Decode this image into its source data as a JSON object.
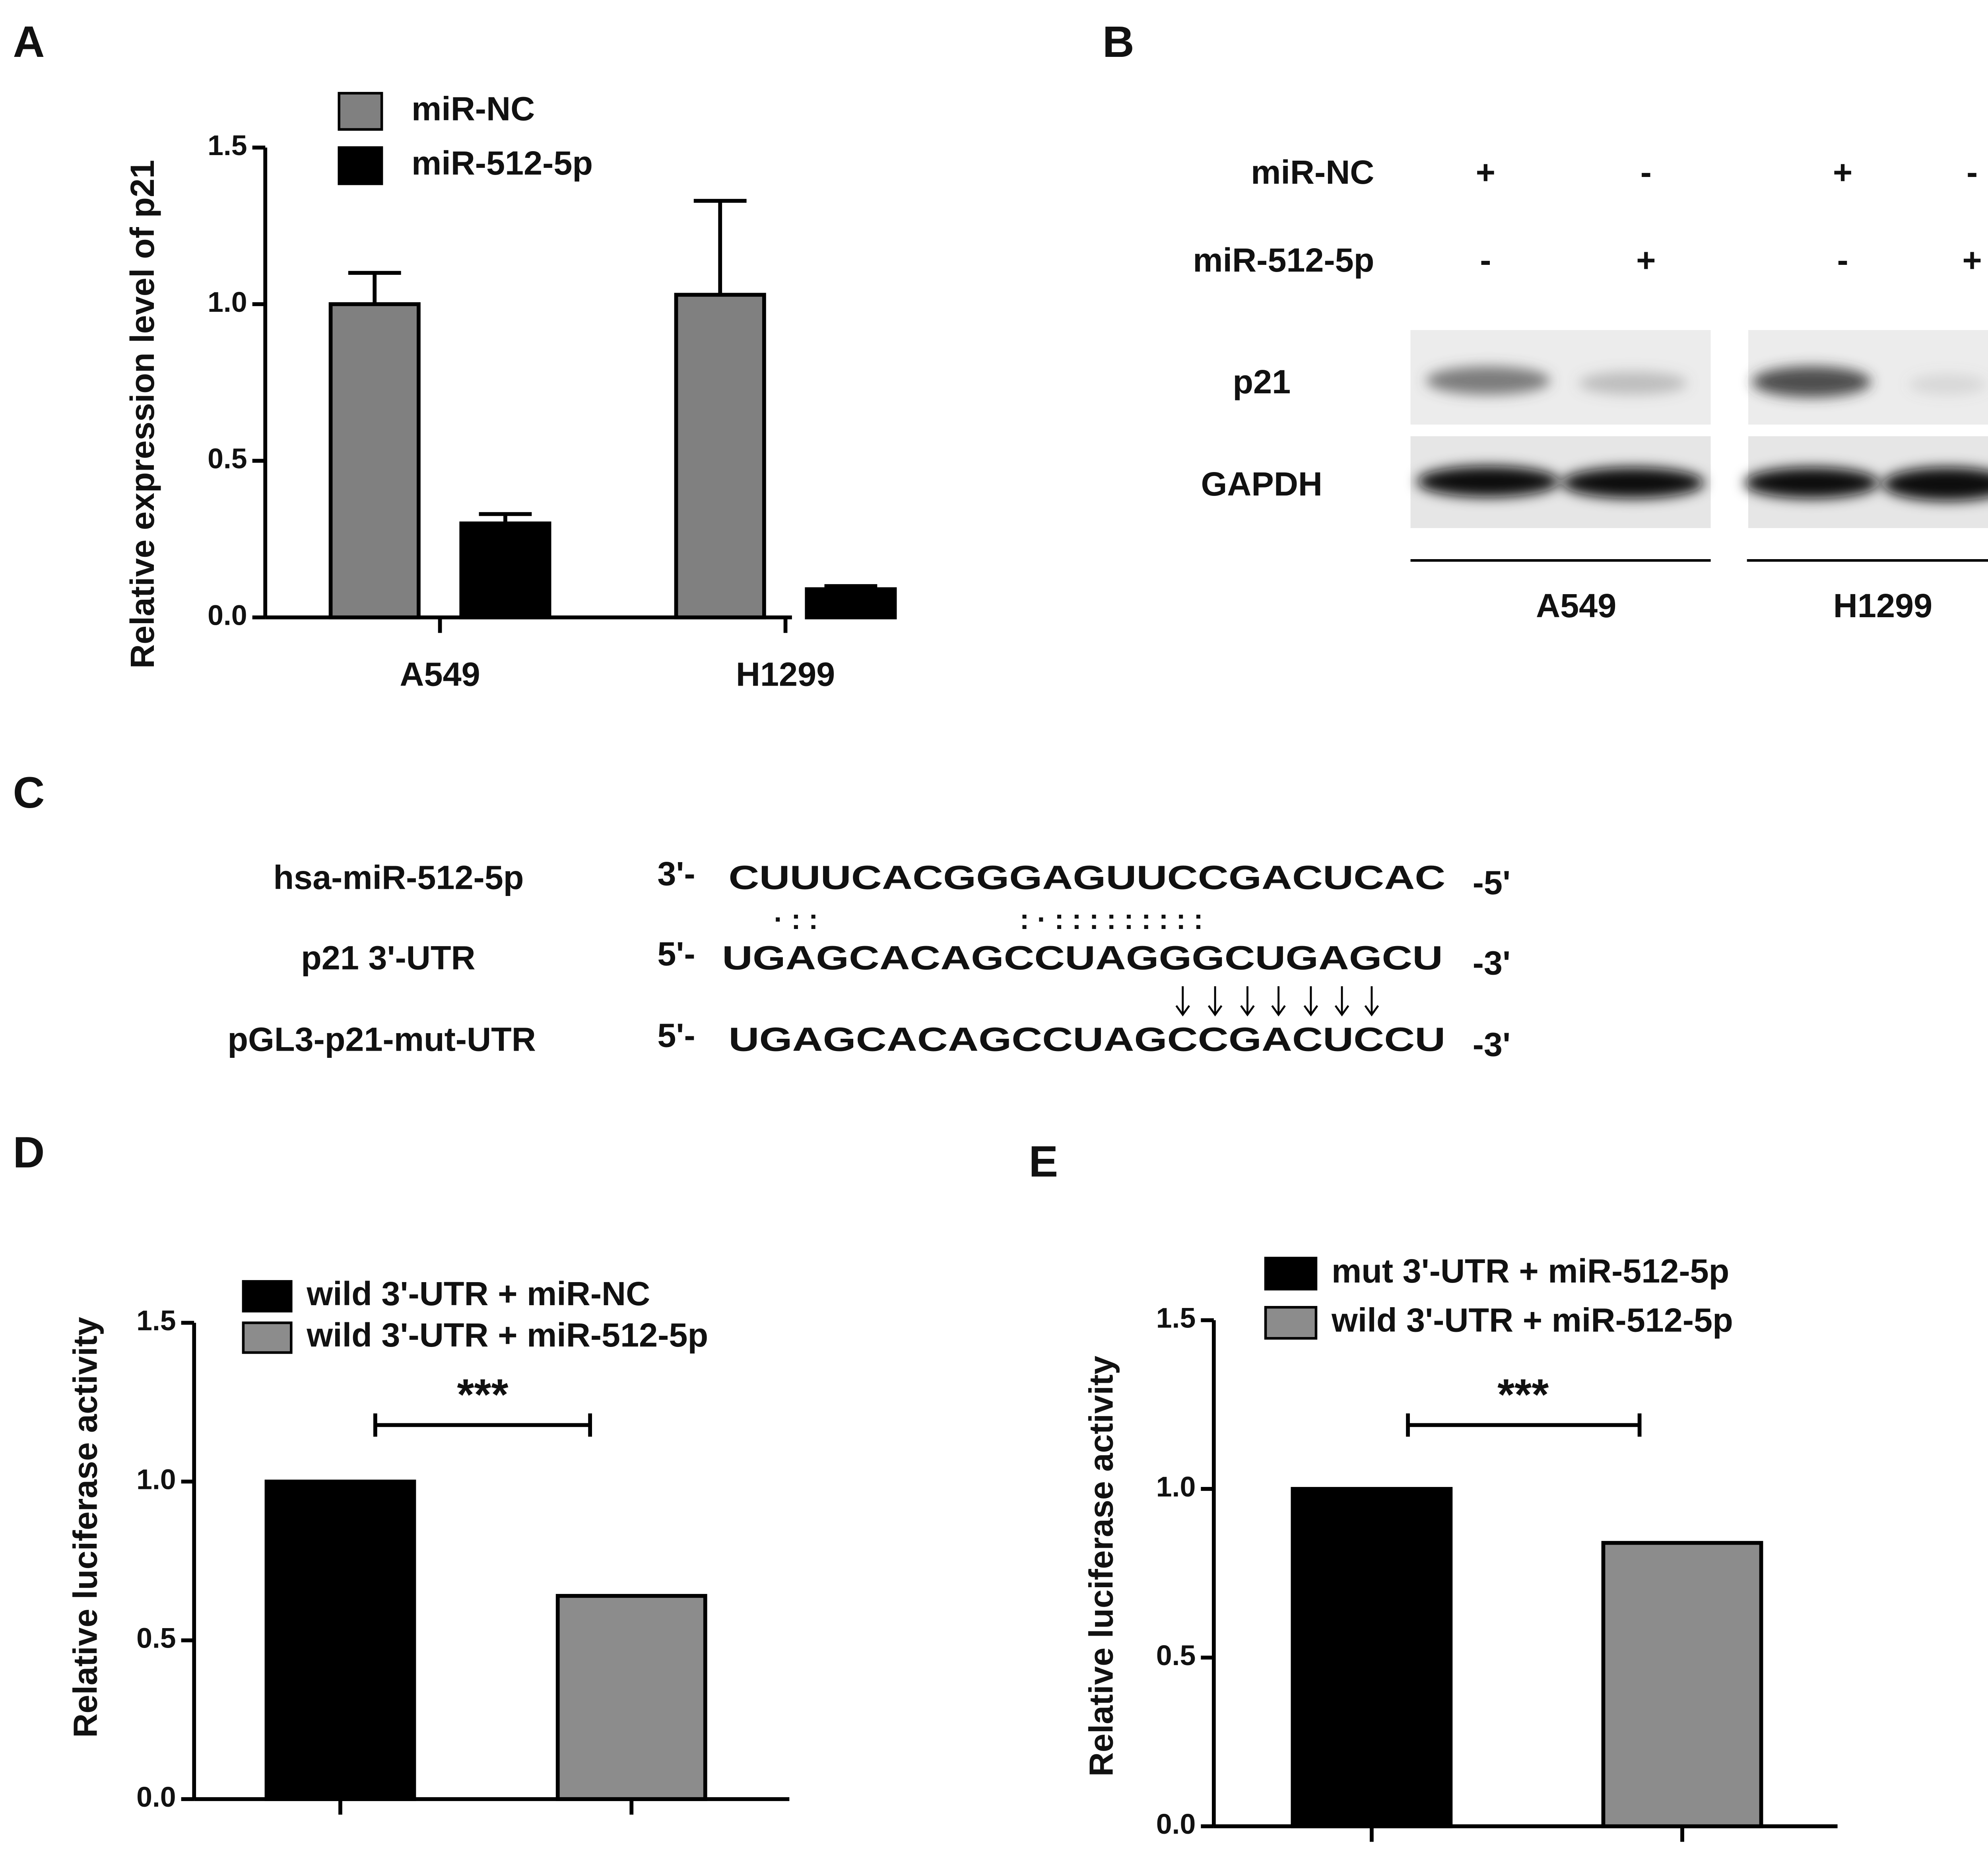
{
  "panel_labels": [
    "A",
    "B",
    "C",
    "D",
    "E"
  ],
  "chart_data": [
    {
      "type": "bar",
      "ylabel": "Relative expression level of p21",
      "categories": [
        "A549",
        "H1299"
      ],
      "series": [
        {
          "name": "miR-NC",
          "color": "#808080",
          "values": [
            1.0,
            1.03
          ],
          "errors": [
            0.1,
            0.3
          ]
        },
        {
          "name": "miR-512-5p",
          "color": "#000000",
          "values": [
            0.3,
            0.09
          ],
          "errors": [
            0.03,
            0.01
          ]
        }
      ],
      "ylim": [
        0,
        1.5
      ],
      "yticks": [
        {
          "value": 0,
          "label": "0.0"
        },
        0.5,
        {
          "value": 1,
          "label": "1.0"
        },
        1.5
      ]
    },
    {
      "type": "bar",
      "ylabel": "Relative  luciferase  activity",
      "categories": [
        null,
        null
      ],
      "series": [
        {
          "name": "wild 3'-UTR + miR-NC",
          "color": "#000000",
          "values": [
            1.0,
            null
          ]
        },
        {
          "name": "wild 3'-UTR + miR-512-5p",
          "color": "#8c8c8c",
          "values": [
            null,
            0.64
          ]
        }
      ],
      "annotation": "***",
      "ylim": [
        0,
        1.5
      ],
      "yticks": [
        {
          "value": 0,
          "label": "0.0"
        },
        0.5,
        {
          "value": 1,
          "label": "1.0"
        },
        1.5
      ]
    },
    {
      "type": "bar",
      "ylabel": "Relative  luciferase  activity",
      "categories": [
        null,
        null
      ],
      "series": [
        {
          "name": "mut 3'-UTR + miR-512-5p",
          "color": "#000000",
          "values": [
            1.0,
            null
          ]
        },
        {
          "name": "wild 3'-UTR + miR-512-5p",
          "color": "#8c8c8c",
          "values": [
            null,
            0.84
          ]
        }
      ],
      "annotation": "***",
      "ylim": [
        0,
        1.5
      ],
      "yticks": [
        {
          "value": 0,
          "label": "0.0"
        },
        0.5,
        {
          "value": 1,
          "label": "1.0"
        },
        1.5
      ]
    }
  ],
  "western_blot": {
    "row_labels": [
      "miR-NC",
      "miR-512-5p"
    ],
    "conditions": [
      [
        "+",
        "-",
        "+",
        "-"
      ],
      [
        "-",
        "+",
        "-",
        "+"
      ]
    ],
    "bands": [
      "p21",
      "GAPDH"
    ],
    "cell_lines": [
      "A549",
      "H1299"
    ]
  },
  "sequence": {
    "rows": [
      {
        "name": "hsa-miR-512-5p",
        "start": "3'-",
        "seq": "CUUUCACGGGAGUUCCGACUCAC",
        "end": "-5'"
      },
      {
        "name": "p21 3'-UTR",
        "start": "5'-",
        "seq": "UGAGCACAGCCUAGGGCUGAGCU",
        "end": "-3'"
      },
      {
        "name": "pGL3-p21-mut-UTR",
        "start": "5'-",
        "seq": "UGAGCACAGCCUAGCCGACUCCU",
        "end": "-3'"
      }
    ]
  }
}
